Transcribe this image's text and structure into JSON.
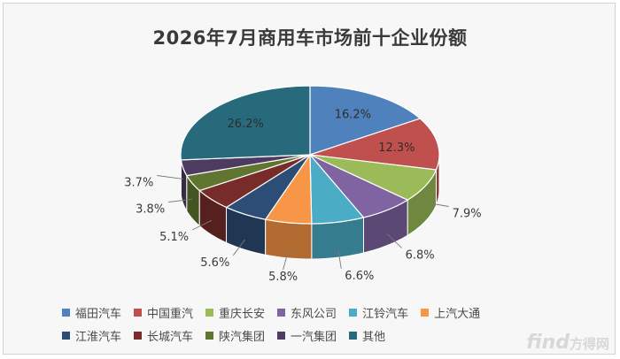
{
  "chart_data": {
    "type": "pie",
    "title": "2026年7月商用车市场前十企业份额",
    "unit": "%",
    "categories": [
      "福田汽车",
      "中国重汽",
      "重庆长安",
      "东风公司",
      "江铃汽车",
      "上汽大通",
      "江淮汽车",
      "长城汽车",
      "陕汽集团",
      "一汽集团",
      "其他"
    ],
    "values": [
      16.2,
      12.3,
      7.9,
      6.8,
      6.6,
      5.8,
      5.6,
      5.1,
      3.8,
      3.7,
      26.2
    ],
    "labels": [
      "16.2%",
      "12.3%",
      "7.9%",
      "6.8%",
      "6.6%",
      "5.8%",
      "5.6%",
      "5.1%",
      "3.8%",
      "3.7%",
      "26.2%"
    ],
    "colors": [
      "#4f81bd",
      "#c0504d",
      "#9bbb59",
      "#8064a2",
      "#4bacc6",
      "#f79646",
      "#2c4d75",
      "#772c2a",
      "#5f7530",
      "#4d3b62",
      "#276a7c"
    ],
    "legend_position": "bottom",
    "style": "3d"
  },
  "watermark": {
    "latin": "find",
    "cn": "方得网"
  }
}
